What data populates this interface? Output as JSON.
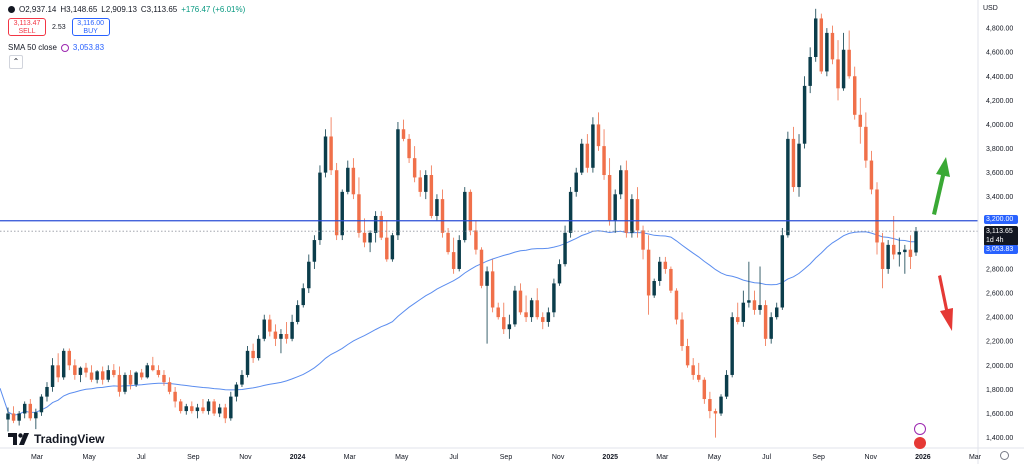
{
  "header": {
    "open": "O2,937.14",
    "high": "H3,148.65",
    "low": "L2,909.13",
    "close": "C3,113.65",
    "change": "+176.47 (+6.01%)"
  },
  "trade": {
    "sell_price": "3,113.47",
    "sell_label": "SELL",
    "spread": "2.53",
    "buy_price": "3,116.00",
    "buy_label": "BUY"
  },
  "indicator": {
    "label": "SMA 50 close",
    "value": "3,053.83"
  },
  "brand": "TradingView",
  "currency": "USD",
  "price_tags": {
    "level": "3,200.00",
    "last": "3,113.65",
    "countdown": "1d 4h",
    "sma": "3,053.83"
  },
  "colors": {
    "up": "#0b3d4b",
    "down": "#f0704a",
    "sma": "#5b8def",
    "hline": "#2b4fd6",
    "arrow_up": "#3aa935",
    "arrow_down": "#e53935"
  },
  "chart_data": {
    "type": "candlestick",
    "y_ticks": [
      1400,
      1600,
      1800,
      2000,
      2200,
      2400,
      2600,
      2800,
      3000,
      3200,
      3400,
      3600,
      3800,
      4000,
      4200,
      4400,
      4600,
      4800
    ],
    "ylim": [
      1330,
      5000
    ],
    "x_labels": [
      "Mar",
      "May",
      "Jul",
      "Sep",
      "Nov",
      "2024",
      "Mar",
      "May",
      "Jul",
      "Sep",
      "Nov",
      "2025",
      "Mar",
      "May",
      "Jul",
      "Sep",
      "Nov",
      "2026",
      "Mar"
    ],
    "horizontal_line": 3200,
    "last_price": 3113.65,
    "candles": [
      [
        1550,
        1650,
        1450,
        1600
      ],
      [
        1600,
        1660,
        1520,
        1540
      ],
      [
        1540,
        1620,
        1500,
        1600
      ],
      [
        1600,
        1700,
        1560,
        1680
      ],
      [
        1680,
        1720,
        1540,
        1560
      ],
      [
        1560,
        1640,
        1470,
        1610
      ],
      [
        1610,
        1760,
        1580,
        1740
      ],
      [
        1740,
        1860,
        1700,
        1820
      ],
      [
        1820,
        2060,
        1780,
        2000
      ],
      [
        2000,
        2100,
        1860,
        1900
      ],
      [
        1900,
        2140,
        1880,
        2120
      ],
      [
        2120,
        2140,
        1960,
        2000
      ],
      [
        2000,
        2050,
        1880,
        1920
      ],
      [
        1920,
        1990,
        1860,
        1980
      ],
      [
        1980,
        2020,
        1900,
        1940
      ],
      [
        1940,
        2000,
        1860,
        1880
      ],
      [
        1880,
        1960,
        1850,
        1950
      ],
      [
        1950,
        1990,
        1840,
        1880
      ],
      [
        1880,
        2000,
        1860,
        1960
      ],
      [
        1960,
        2010,
        1900,
        1920
      ],
      [
        1920,
        1990,
        1740,
        1780
      ],
      [
        1780,
        1940,
        1760,
        1920
      ],
      [
        1920,
        1960,
        1800,
        1840
      ],
      [
        1840,
        1950,
        1820,
        1940
      ],
      [
        1940,
        1970,
        1880,
        1900
      ],
      [
        1900,
        2020,
        1890,
        2000
      ],
      [
        2000,
        2070,
        1950,
        1960
      ],
      [
        1960,
        2000,
        1900,
        1920
      ],
      [
        1920,
        1960,
        1830,
        1860
      ],
      [
        1860,
        1900,
        1760,
        1780
      ],
      [
        1780,
        1820,
        1650,
        1700
      ],
      [
        1700,
        1720,
        1600,
        1620
      ],
      [
        1620,
        1680,
        1590,
        1660
      ],
      [
        1660,
        1700,
        1600,
        1620
      ],
      [
        1620,
        1680,
        1560,
        1650
      ],
      [
        1650,
        1720,
        1600,
        1620
      ],
      [
        1620,
        1720,
        1590,
        1700
      ],
      [
        1700,
        1720,
        1580,
        1600
      ],
      [
        1600,
        1680,
        1570,
        1650
      ],
      [
        1650,
        1680,
        1520,
        1560
      ],
      [
        1560,
        1780,
        1540,
        1740
      ],
      [
        1740,
        1860,
        1700,
        1840
      ],
      [
        1840,
        1960,
        1820,
        1920
      ],
      [
        1920,
        2160,
        1900,
        2120
      ],
      [
        2120,
        2180,
        2020,
        2060
      ],
      [
        2060,
        2250,
        2040,
        2220
      ],
      [
        2220,
        2420,
        2200,
        2380
      ],
      [
        2380,
        2420,
        2240,
        2280
      ],
      [
        2280,
        2340,
        2160,
        2220
      ],
      [
        2220,
        2300,
        2100,
        2260
      ],
      [
        2260,
        2360,
        2180,
        2220
      ],
      [
        2220,
        2420,
        2200,
        2360
      ],
      [
        2360,
        2540,
        2340,
        2500
      ],
      [
        2500,
        2680,
        2480,
        2640
      ],
      [
        2640,
        2920,
        2600,
        2860
      ],
      [
        2860,
        3080,
        2800,
        3040
      ],
      [
        3040,
        3660,
        3000,
        3600
      ],
      [
        3600,
        3960,
        3560,
        3900
      ],
      [
        3900,
        4060,
        3580,
        3620
      ],
      [
        3620,
        3680,
        3040,
        3080
      ],
      [
        3080,
        3460,
        3040,
        3440
      ],
      [
        3440,
        3700,
        3420,
        3640
      ],
      [
        3640,
        3720,
        3380,
        3420
      ],
      [
        3420,
        3560,
        3060,
        3100
      ],
      [
        3100,
        3220,
        2980,
        3020
      ],
      [
        3020,
        3120,
        2940,
        3100
      ],
      [
        3100,
        3280,
        3020,
        3240
      ],
      [
        3240,
        3280,
        3040,
        3060
      ],
      [
        3060,
        3200,
        2860,
        2880
      ],
      [
        2880,
        3100,
        2860,
        3080
      ],
      [
        3080,
        4020,
        3040,
        3960
      ],
      [
        3960,
        4040,
        3860,
        3880
      ],
      [
        3880,
        3920,
        3680,
        3720
      ],
      [
        3720,
        3820,
        3520,
        3560
      ],
      [
        3560,
        3620,
        3400,
        3440
      ],
      [
        3440,
        3620,
        3380,
        3580
      ],
      [
        3580,
        3660,
        3220,
        3240
      ],
      [
        3240,
        3420,
        3200,
        3380
      ],
      [
        3380,
        3460,
        3060,
        3100
      ],
      [
        3100,
        3140,
        2920,
        2940
      ],
      [
        2940,
        3060,
        2760,
        2800
      ],
      [
        2800,
        3080,
        2780,
        3040
      ],
      [
        3040,
        3480,
        3020,
        3440
      ],
      [
        3440,
        3460,
        3080,
        3120
      ],
      [
        3120,
        3200,
        2920,
        2960
      ],
      [
        2960,
        2980,
        2640,
        2660
      ],
      [
        2660,
        2820,
        2180,
        2780
      ],
      [
        2780,
        2880,
        2440,
        2480
      ],
      [
        2480,
        2520,
        2380,
        2400
      ],
      [
        2400,
        2520,
        2260,
        2300
      ],
      [
        2300,
        2420,
        2220,
        2340
      ],
      [
        2340,
        2660,
        2320,
        2620
      ],
      [
        2620,
        2680,
        2420,
        2440
      ],
      [
        2440,
        2580,
        2360,
        2400
      ],
      [
        2400,
        2560,
        2360,
        2540
      ],
      [
        2540,
        2640,
        2380,
        2400
      ],
      [
        2400,
        2440,
        2300,
        2360
      ],
      [
        2360,
        2480,
        2320,
        2440
      ],
      [
        2440,
        2720,
        2400,
        2680
      ],
      [
        2680,
        2880,
        2660,
        2840
      ],
      [
        2840,
        3160,
        2820,
        3100
      ],
      [
        3100,
        3480,
        3060,
        3440
      ],
      [
        3440,
        3640,
        3400,
        3600
      ],
      [
        3600,
        3880,
        3580,
        3840
      ],
      [
        3840,
        3920,
        3600,
        3640
      ],
      [
        3640,
        4060,
        3600,
        4000
      ],
      [
        4000,
        4100,
        3780,
        3820
      ],
      [
        3820,
        3960,
        3540,
        3580
      ],
      [
        3580,
        3720,
        3160,
        3200
      ],
      [
        3200,
        3460,
        3100,
        3420
      ],
      [
        3420,
        3660,
        3380,
        3620
      ],
      [
        3620,
        3700,
        3060,
        3100
      ],
      [
        3100,
        3420,
        3060,
        3380
      ],
      [
        3380,
        3480,
        3060,
        3120
      ],
      [
        3120,
        3160,
        2880,
        2960
      ],
      [
        2960,
        3080,
        2420,
        2580
      ],
      [
        2580,
        2720,
        2560,
        2700
      ],
      [
        2700,
        2900,
        2660,
        2860
      ],
      [
        2860,
        2900,
        2760,
        2800
      ],
      [
        2800,
        2820,
        2600,
        2620
      ],
      [
        2620,
        2640,
        2340,
        2380
      ],
      [
        2380,
        2440,
        2120,
        2160
      ],
      [
        2160,
        2220,
        1980,
        2000
      ],
      [
        2000,
        2060,
        1880,
        1920
      ],
      [
        1920,
        2020,
        1860,
        1880
      ],
      [
        1880,
        1900,
        1680,
        1720
      ],
      [
        1720,
        1780,
        1560,
        1620
      ],
      [
        1620,
        1640,
        1400,
        1600
      ],
      [
        1600,
        1760,
        1580,
        1740
      ],
      [
        1740,
        1960,
        1720,
        1920
      ],
      [
        1920,
        2440,
        1900,
        2400
      ],
      [
        2400,
        2520,
        2340,
        2360
      ],
      [
        2360,
        2620,
        2320,
        2520
      ],
      [
        2520,
        2860,
        2480,
        2540
      ],
      [
        2540,
        2620,
        2420,
        2460
      ],
      [
        2460,
        2820,
        2420,
        2500
      ],
      [
        2500,
        2540,
        2160,
        2220
      ],
      [
        2220,
        2440,
        2180,
        2400
      ],
      [
        2400,
        2520,
        2380,
        2480
      ],
      [
        2480,
        3140,
        2460,
        3080
      ],
      [
        3080,
        3940,
        3060,
        3880
      ],
      [
        3880,
        3980,
        3440,
        3480
      ],
      [
        3480,
        3920,
        3400,
        3840
      ],
      [
        3840,
        4400,
        3800,
        4320
      ],
      [
        4320,
        4640,
        4260,
        4560
      ],
      [
        4560,
        4960,
        4520,
        4880
      ],
      [
        4880,
        4920,
        4420,
        4440
      ],
      [
        4440,
        4800,
        4400,
        4760
      ],
      [
        4760,
        4820,
        4500,
        4540
      ],
      [
        4540,
        4700,
        4200,
        4300
      ],
      [
        4300,
        4760,
        4280,
        4620
      ],
      [
        4620,
        4780,
        4380,
        4400
      ],
      [
        4400,
        4480,
        4040,
        4080
      ],
      [
        4080,
        4220,
        3840,
        3980
      ],
      [
        3980,
        4100,
        3640,
        3700
      ],
      [
        3700,
        3780,
        3420,
        3460
      ],
      [
        3460,
        3520,
        2920,
        3020
      ],
      [
        3020,
        3100,
        2640,
        2800
      ],
      [
        2800,
        3040,
        2760,
        3000
      ],
      [
        3000,
        3240,
        2880,
        2920
      ],
      [
        2920,
        3060,
        2820,
        2940
      ],
      [
        2940,
        3000,
        2760,
        2960
      ],
      [
        2960,
        3080,
        2800,
        2900
      ],
      [
        2937.14,
        3148.65,
        2909.13,
        3113.65
      ]
    ]
  }
}
